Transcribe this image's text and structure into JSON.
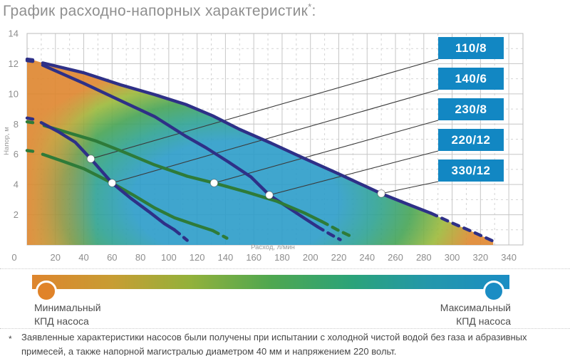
{
  "title": {
    "text": "График расходно-напорных характеристик",
    "sup": "*",
    "suffix": ":"
  },
  "chart_data": {
    "type": "line",
    "x_label": "Расход, л/мин",
    "y_label": "Напор, м",
    "x_range": [
      0,
      350
    ],
    "y_range": [
      0,
      14
    ],
    "x_ticks": [
      0,
      20,
      40,
      60,
      80,
      100,
      120,
      140,
      160,
      180,
      200,
      220,
      240,
      260,
      280,
      300,
      320,
      340
    ],
    "y_ticks": [
      2,
      4,
      6,
      8,
      10,
      12,
      14
    ],
    "grid": "major solid, minor dashed",
    "curve_colors": {
      "navy": "#2e3087",
      "green": "#2e7b39"
    },
    "label_box_color": "#1287c3",
    "efficiency_map": {
      "stops": [
        [
          0,
          "#2b9cc9"
        ],
        [
          0.36,
          "#2b9cc9"
        ],
        [
          0.5,
          "#2ea292"
        ],
        [
          0.62,
          "#46a455"
        ],
        [
          0.74,
          "#9cb93a"
        ],
        [
          0.86,
          "#df862e"
        ],
        [
          1,
          "#df862e"
        ]
      ],
      "left_edge_color": "#de862e"
    },
    "series": [
      {
        "label": "110/8",
        "color": "#2e3087",
        "start_dash": [
          [
            0,
            8.4
          ],
          [
            4,
            8.33
          ]
        ],
        "points": [
          [
            10,
            8.1
          ],
          [
            22,
            7.5
          ],
          [
            34,
            6.8
          ],
          [
            45,
            5.7
          ],
          [
            60,
            4.1
          ],
          [
            73,
            3.1
          ],
          [
            86,
            2.2
          ],
          [
            97,
            1.4
          ],
          [
            104,
            1.0
          ]
        ],
        "end_dash": [
          [
            104,
            1.0
          ],
          [
            109,
            0.62
          ],
          [
            113,
            0.3
          ]
        ],
        "marker": [
          45,
          5.7
        ]
      },
      {
        "label": "140/6",
        "color": "#2e7b39",
        "start_dash": [
          [
            0,
            6.25
          ],
          [
            4,
            6.2
          ]
        ],
        "points": [
          [
            11,
            6.0
          ],
          [
            25,
            5.55
          ],
          [
            40,
            5.05
          ],
          [
            60,
            4.1
          ],
          [
            75,
            3.3
          ],
          [
            90,
            2.45
          ],
          [
            104,
            1.8
          ],
          [
            118,
            1.35
          ],
          [
            131,
            0.95
          ]
        ],
        "end_dash": [
          [
            131,
            0.95
          ],
          [
            141,
            0.45
          ]
        ],
        "marker": [
          60,
          4.1
        ]
      },
      {
        "label": "230/8",
        "color": "#2e7b39",
        "start_dash": [
          [
            0,
            8.15
          ],
          [
            4,
            8.1
          ]
        ],
        "points": [
          [
            12,
            7.9
          ],
          [
            30,
            7.4
          ],
          [
            48,
            6.9
          ],
          [
            67,
            6.2
          ],
          [
            90,
            5.3
          ],
          [
            113,
            4.55
          ],
          [
            132,
            4.1
          ],
          [
            155,
            3.5
          ],
          [
            176,
            2.9
          ],
          [
            196,
            2.1
          ],
          [
            208,
            1.55
          ]
        ],
        "end_dash": [
          [
            208,
            1.55
          ],
          [
            219,
            1.0
          ],
          [
            228,
            0.6
          ]
        ],
        "marker": [
          132,
          4.1
        ]
      },
      {
        "label": "220/12",
        "color": "#2e3087",
        "start_dash": [
          [
            0,
            12.2
          ],
          [
            4,
            12.15
          ]
        ],
        "points": [
          [
            11,
            11.9
          ],
          [
            40,
            10.7
          ],
          [
            66,
            9.55
          ],
          [
            90,
            8.5
          ],
          [
            112,
            7.2
          ],
          [
            126,
            6.45
          ],
          [
            142,
            5.5
          ],
          [
            158,
            4.5
          ],
          [
            171,
            3.3
          ],
          [
            184,
            2.5
          ],
          [
            196,
            1.75
          ],
          [
            205,
            1.2
          ]
        ],
        "end_dash": [
          [
            205,
            1.2
          ],
          [
            214,
            0.7
          ],
          [
            221,
            0.35
          ]
        ],
        "marker": [
          171,
          3.3
        ]
      },
      {
        "label": "330/12",
        "color": "#2e3087",
        "boundary": true,
        "start_dash": [
          [
            0,
            12.3
          ],
          [
            4,
            12.25
          ]
        ],
        "points": [
          [
            11,
            12.05
          ],
          [
            40,
            11.4
          ],
          [
            66,
            10.6
          ],
          [
            90,
            9.95
          ],
          [
            112,
            9.3
          ],
          [
            131,
            8.55
          ],
          [
            150,
            7.65
          ],
          [
            172,
            6.75
          ],
          [
            194,
            5.8
          ],
          [
            220,
            4.7
          ],
          [
            250,
            3.4
          ],
          [
            270,
            2.65
          ],
          [
            285,
            2.1
          ]
        ],
        "end_dash": [
          [
            285,
            2.1
          ],
          [
            300,
            1.45
          ],
          [
            315,
            0.85
          ],
          [
            329,
            0.25
          ]
        ],
        "marker": [
          250,
          3.4
        ]
      }
    ]
  },
  "legend": {
    "gradient": [
      "#de852e",
      "#c79d33",
      "#93b13b",
      "#4fa750",
      "#2ba379",
      "#2397ab",
      "#1b8dc4"
    ],
    "min": {
      "line1": "Минимальный",
      "line2": "КПД насоса",
      "marker_color": "#e08329"
    },
    "max": {
      "line1": "Максимальный",
      "line2": "КПД насоса",
      "marker_color": "#1b8dc4"
    }
  },
  "footnote": {
    "marker": "*",
    "text": "Заявленные характеристики насосов были получены при испытании с холодной чистой водой без газа и абразивных примесей, а также напорной магистралью диаметром 40 мм и напряжением 220 вольт."
  }
}
